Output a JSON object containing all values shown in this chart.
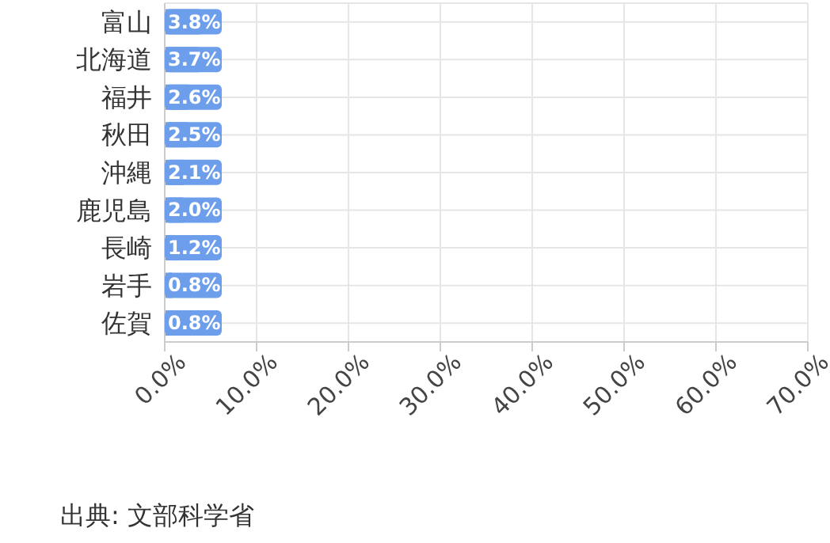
{
  "chart_data": {
    "type": "bar",
    "orientation": "horizontal",
    "categories": [
      "富山",
      "北海道",
      "福井",
      "秋田",
      "沖縄",
      "鹿児島",
      "長崎",
      "岩手",
      "佐賀"
    ],
    "values": [
      3.8,
      3.7,
      2.6,
      2.5,
      2.1,
      2.0,
      1.2,
      0.8,
      0.8
    ],
    "value_labels": [
      "3.8%",
      "3.7%",
      "2.6%",
      "2.5%",
      "2.1%",
      "2.0%",
      "1.2%",
      "0.8%",
      "0.8%"
    ],
    "color": "#6d9eeb",
    "xlim": [
      0,
      70
    ],
    "xticks": [
      {
        "value": 0,
        "label": "0.0%"
      },
      {
        "value": 10,
        "label": "10.0%"
      },
      {
        "value": 20,
        "label": "20.0%"
      },
      {
        "value": 30,
        "label": "30.0%"
      },
      {
        "value": 40,
        "label": "40.0%"
      },
      {
        "value": 50,
        "label": "50.0%"
      },
      {
        "value": 60,
        "label": "60.0%"
      },
      {
        "value": 70,
        "label": "70.0%"
      }
    ],
    "grid": true,
    "annotations": [
      "出典: 文部科学省"
    ]
  }
}
